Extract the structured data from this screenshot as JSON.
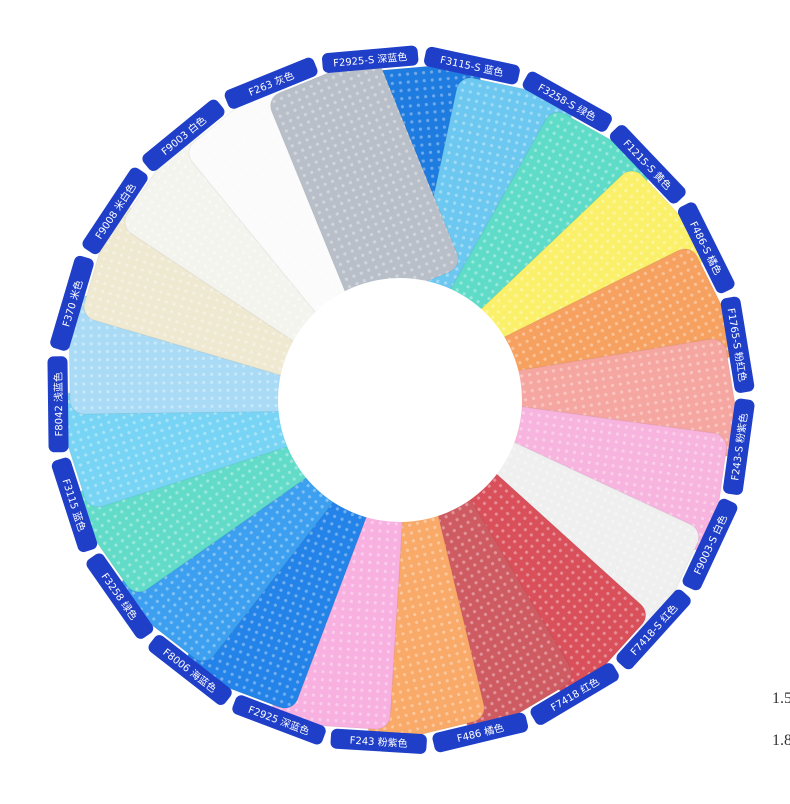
{
  "swatches": [
    {
      "label": "F2925-S 深蓝色",
      "color": "#1e7be0"
    },
    {
      "label": "F3115-S 蓝色",
      "color": "#6cc8f0"
    },
    {
      "label": "F3258-S 绿色",
      "color": "#5fdcc8"
    },
    {
      "label": "F1215-S 黄色",
      "color": "#fbf06a"
    },
    {
      "label": "F486-S 橘色",
      "color": "#f7a160"
    },
    {
      "label": "F1765-S 粉红色",
      "color": "#f6a6a0"
    },
    {
      "label": "F243-S 粉紫色",
      "color": "#f7b4de"
    },
    {
      "label": "F9003-S 白色",
      "color": "#efefef"
    },
    {
      "label": "F7418-S 红色",
      "color": "#d94f5a"
    },
    {
      "label": "F7418 红色",
      "color": "#cf5b62"
    },
    {
      "label": "F486 橘色",
      "color": "#f9a968"
    },
    {
      "label": "F243 粉紫色",
      "color": "#f7b0e0"
    },
    {
      "label": "F2925 深蓝色",
      "color": "#2383e8"
    },
    {
      "label": "F8006 海蓝色",
      "color": "#3c9ff0"
    },
    {
      "label": "F3258 绿色",
      "color": "#62dcc8"
    },
    {
      "label": "F3115 蓝色",
      "color": "#77d4f5"
    },
    {
      "label": "F8042 浅蓝色",
      "color": "#a9dbf6"
    },
    {
      "label": "F370 米色",
      "color": "#efe9d2"
    },
    {
      "label": "F9008 米白色",
      "color": "#f4f4ee"
    },
    {
      "label": "F9003 白色",
      "color": "#fbfbfb"
    },
    {
      "label": "F263 灰色",
      "color": "#b9bfc8"
    }
  ],
  "tab_color": "#1f3fc8",
  "side_text": [
    "1.5",
    "1.8"
  ]
}
